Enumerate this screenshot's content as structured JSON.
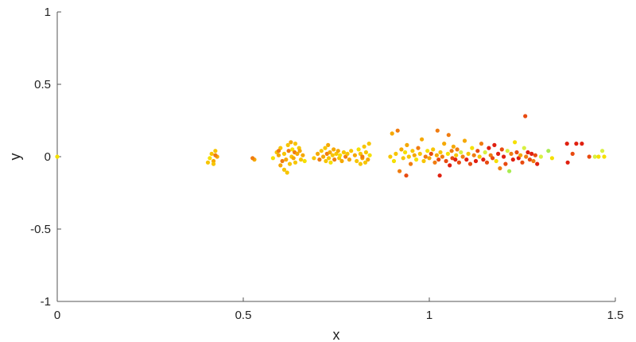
{
  "chart_data": {
    "type": "scatter",
    "title": "",
    "xlabel": "x",
    "ylabel": "y",
    "xlim": [
      0,
      1.5
    ],
    "ylim": [
      -1,
      1
    ],
    "x_ticks": [
      0,
      0.5,
      1,
      1.5
    ],
    "x_tick_labels": [
      "0",
      "0.5",
      "1",
      "1.5"
    ],
    "y_ticks": [
      -1,
      -0.5,
      0,
      0.5,
      1
    ],
    "y_tick_labels": [
      "-1",
      "-0.5",
      "0",
      "0.5",
      "1"
    ],
    "grid": false,
    "legend": "none",
    "colors": {
      "axis": "#555555",
      "red": "#e02010",
      "orange_red": "#e84a10",
      "orange": "#f07c10",
      "amber": "#f5a800",
      "gold": "#f7c500",
      "yellow": "#f5e000",
      "yellow_green": "#d8f040",
      "green": "#a8ec50"
    },
    "points": [
      {
        "x": 0.0,
        "y": 0.0,
        "c": "yellow"
      },
      {
        "x": 0.415,
        "y": 0.02,
        "c": "gold"
      },
      {
        "x": 0.42,
        "y": -0.03,
        "c": "amber"
      },
      {
        "x": 0.425,
        "y": 0.04,
        "c": "gold"
      },
      {
        "x": 0.41,
        "y": -0.01,
        "c": "yellow"
      },
      {
        "x": 0.43,
        "y": 0.0,
        "c": "amber"
      },
      {
        "x": 0.42,
        "y": -0.05,
        "c": "gold"
      },
      {
        "x": 0.405,
        "y": -0.04,
        "c": "gold"
      },
      {
        "x": 0.425,
        "y": 0.01,
        "c": "orange"
      },
      {
        "x": 0.53,
        "y": -0.02,
        "c": "amber"
      },
      {
        "x": 0.525,
        "y": -0.01,
        "c": "orange"
      },
      {
        "x": 0.58,
        "y": -0.01,
        "c": "yellow"
      },
      {
        "x": 0.59,
        "y": 0.03,
        "c": "gold"
      },
      {
        "x": 0.595,
        "y": 0.01,
        "c": "amber"
      },
      {
        "x": 0.6,
        "y": 0.06,
        "c": "gold"
      },
      {
        "x": 0.605,
        "y": -0.03,
        "c": "orange"
      },
      {
        "x": 0.61,
        "y": 0.02,
        "c": "gold"
      },
      {
        "x": 0.615,
        "y": -0.02,
        "c": "amber"
      },
      {
        "x": 0.62,
        "y": 0.08,
        "c": "gold"
      },
      {
        "x": 0.622,
        "y": 0.04,
        "c": "orange"
      },
      {
        "x": 0.625,
        "y": -0.05,
        "c": "gold"
      },
      {
        "x": 0.628,
        "y": 0.1,
        "c": "amber"
      },
      {
        "x": 0.63,
        "y": 0.0,
        "c": "gold"
      },
      {
        "x": 0.632,
        "y": 0.05,
        "c": "yellow"
      },
      {
        "x": 0.635,
        "y": -0.01,
        "c": "amber"
      },
      {
        "x": 0.638,
        "y": 0.03,
        "c": "orange"
      },
      {
        "x": 0.64,
        "y": -0.04,
        "c": "gold"
      },
      {
        "x": 0.645,
        "y": 0.02,
        "c": "amber"
      },
      {
        "x": 0.65,
        "y": 0.06,
        "c": "gold"
      },
      {
        "x": 0.655,
        "y": -0.02,
        "c": "gold"
      },
      {
        "x": 0.66,
        "y": 0.01,
        "c": "amber"
      },
      {
        "x": 0.665,
        "y": -0.03,
        "c": "yellow"
      },
      {
        "x": 0.61,
        "y": -0.09,
        "c": "gold"
      },
      {
        "x": 0.6,
        "y": -0.06,
        "c": "amber"
      },
      {
        "x": 0.618,
        "y": -0.11,
        "c": "gold"
      },
      {
        "x": 0.595,
        "y": 0.04,
        "c": "orange"
      },
      {
        "x": 0.64,
        "y": 0.09,
        "c": "gold"
      },
      {
        "x": 0.652,
        "y": 0.04,
        "c": "amber"
      },
      {
        "x": 0.69,
        "y": -0.01,
        "c": "gold"
      },
      {
        "x": 0.7,
        "y": 0.02,
        "c": "amber"
      },
      {
        "x": 0.705,
        "y": -0.02,
        "c": "orange"
      },
      {
        "x": 0.71,
        "y": 0.04,
        "c": "gold"
      },
      {
        "x": 0.715,
        "y": 0.0,
        "c": "amber"
      },
      {
        "x": 0.72,
        "y": 0.06,
        "c": "gold"
      },
      {
        "x": 0.722,
        "y": -0.03,
        "c": "gold"
      },
      {
        "x": 0.725,
        "y": 0.02,
        "c": "orange"
      },
      {
        "x": 0.728,
        "y": 0.08,
        "c": "amber"
      },
      {
        "x": 0.73,
        "y": -0.01,
        "c": "gold"
      },
      {
        "x": 0.733,
        "y": 0.03,
        "c": "amber"
      },
      {
        "x": 0.735,
        "y": -0.04,
        "c": "yellow"
      },
      {
        "x": 0.74,
        "y": 0.01,
        "c": "gold"
      },
      {
        "x": 0.743,
        "y": 0.05,
        "c": "amber"
      },
      {
        "x": 0.745,
        "y": -0.02,
        "c": "orange"
      },
      {
        "x": 0.75,
        "y": 0.02,
        "c": "gold"
      },
      {
        "x": 0.755,
        "y": 0.04,
        "c": "amber"
      },
      {
        "x": 0.758,
        "y": -0.01,
        "c": "gold"
      },
      {
        "x": 0.76,
        "y": 0.01,
        "c": "yellow"
      },
      {
        "x": 0.765,
        "y": -0.03,
        "c": "amber"
      },
      {
        "x": 0.77,
        "y": 0.03,
        "c": "gold"
      },
      {
        "x": 0.775,
        "y": 0.0,
        "c": "orange"
      },
      {
        "x": 0.78,
        "y": 0.02,
        "c": "gold"
      },
      {
        "x": 0.785,
        "y": -0.02,
        "c": "amber"
      },
      {
        "x": 0.79,
        "y": 0.04,
        "c": "gold"
      },
      {
        "x": 0.8,
        "y": 0.01,
        "c": "amber"
      },
      {
        "x": 0.805,
        "y": -0.03,
        "c": "gold"
      },
      {
        "x": 0.81,
        "y": 0.05,
        "c": "yellow"
      },
      {
        "x": 0.815,
        "y": 0.02,
        "c": "gold"
      },
      {
        "x": 0.82,
        "y": -0.01,
        "c": "amber"
      },
      {
        "x": 0.825,
        "y": 0.07,
        "c": "gold"
      },
      {
        "x": 0.83,
        "y": 0.03,
        "c": "gold"
      },
      {
        "x": 0.835,
        "y": -0.02,
        "c": "amber"
      },
      {
        "x": 0.838,
        "y": 0.09,
        "c": "gold"
      },
      {
        "x": 0.84,
        "y": 0.01,
        "c": "yellow"
      },
      {
        "x": 0.815,
        "y": -0.05,
        "c": "gold"
      },
      {
        "x": 0.82,
        "y": 0.0,
        "c": "orange"
      },
      {
        "x": 0.828,
        "y": -0.04,
        "c": "gold"
      },
      {
        "x": 0.895,
        "y": 0.0,
        "c": "gold"
      },
      {
        "x": 0.9,
        "y": 0.16,
        "c": "amber"
      },
      {
        "x": 0.905,
        "y": -0.03,
        "c": "yellow"
      },
      {
        "x": 0.91,
        "y": 0.02,
        "c": "gold"
      },
      {
        "x": 0.915,
        "y": 0.18,
        "c": "orange"
      },
      {
        "x": 0.92,
        "y": -0.1,
        "c": "orange"
      },
      {
        "x": 0.925,
        "y": 0.05,
        "c": "amber"
      },
      {
        "x": 0.93,
        "y": -0.01,
        "c": "gold"
      },
      {
        "x": 0.935,
        "y": 0.03,
        "c": "yellow"
      },
      {
        "x": 0.938,
        "y": -0.13,
        "c": "orange_red"
      },
      {
        "x": 0.94,
        "y": 0.08,
        "c": "amber"
      },
      {
        "x": 0.945,
        "y": 0.0,
        "c": "gold"
      },
      {
        "x": 0.95,
        "y": -0.05,
        "c": "orange"
      },
      {
        "x": 0.955,
        "y": 0.04,
        "c": "gold"
      },
      {
        "x": 0.96,
        "y": 0.01,
        "c": "amber"
      },
      {
        "x": 0.965,
        "y": -0.02,
        "c": "yellow"
      },
      {
        "x": 0.97,
        "y": 0.06,
        "c": "orange"
      },
      {
        "x": 0.975,
        "y": 0.02,
        "c": "gold"
      },
      {
        "x": 0.98,
        "y": 0.12,
        "c": "amber"
      },
      {
        "x": 0.985,
        "y": -0.03,
        "c": "gold"
      },
      {
        "x": 0.99,
        "y": 0.0,
        "c": "orange"
      },
      {
        "x": 0.995,
        "y": 0.04,
        "c": "yellow"
      },
      {
        "x": 1.0,
        "y": -0.01,
        "c": "amber"
      },
      {
        "x": 1.005,
        "y": 0.02,
        "c": "orange_red"
      },
      {
        "x": 1.01,
        "y": 0.05,
        "c": "gold"
      },
      {
        "x": 1.015,
        "y": -0.04,
        "c": "orange"
      },
      {
        "x": 1.02,
        "y": 0.01,
        "c": "amber"
      },
      {
        "x": 1.022,
        "y": 0.18,
        "c": "orange"
      },
      {
        "x": 1.025,
        "y": -0.02,
        "c": "orange_red"
      },
      {
        "x": 1.028,
        "y": -0.13,
        "c": "red"
      },
      {
        "x": 1.03,
        "y": 0.03,
        "c": "gold"
      },
      {
        "x": 1.035,
        "y": 0.0,
        "c": "orange"
      },
      {
        "x": 1.04,
        "y": 0.09,
        "c": "amber"
      },
      {
        "x": 1.045,
        "y": -0.03,
        "c": "orange_red"
      },
      {
        "x": 1.05,
        "y": 0.02,
        "c": "yellow"
      },
      {
        "x": 1.052,
        "y": 0.15,
        "c": "orange"
      },
      {
        "x": 1.055,
        "y": -0.06,
        "c": "red"
      },
      {
        "x": 1.06,
        "y": 0.04,
        "c": "orange"
      },
      {
        "x": 1.062,
        "y": -0.01,
        "c": "orange_red"
      },
      {
        "x": 1.065,
        "y": 0.07,
        "c": "amber"
      },
      {
        "x": 1.07,
        "y": -0.02,
        "c": "red"
      },
      {
        "x": 1.072,
        "y": 0.01,
        "c": "gold"
      },
      {
        "x": 1.075,
        "y": 0.05,
        "c": "orange"
      },
      {
        "x": 1.08,
        "y": -0.04,
        "c": "orange_red"
      },
      {
        "x": 1.085,
        "y": 0.03,
        "c": "yellow_green"
      },
      {
        "x": 1.09,
        "y": 0.0,
        "c": "orange"
      },
      {
        "x": 1.095,
        "y": 0.11,
        "c": "amber"
      },
      {
        "x": 1.1,
        "y": -0.02,
        "c": "red"
      },
      {
        "x": 1.105,
        "y": 0.02,
        "c": "gold"
      },
      {
        "x": 1.11,
        "y": -0.05,
        "c": "orange_red"
      },
      {
        "x": 1.115,
        "y": 0.06,
        "c": "yellow"
      },
      {
        "x": 1.12,
        "y": 0.01,
        "c": "orange"
      },
      {
        "x": 1.125,
        "y": -0.03,
        "c": "red"
      },
      {
        "x": 1.13,
        "y": 0.04,
        "c": "orange_red"
      },
      {
        "x": 1.135,
        "y": 0.0,
        "c": "gold"
      },
      {
        "x": 1.14,
        "y": 0.09,
        "c": "orange"
      },
      {
        "x": 1.145,
        "y": -0.02,
        "c": "red"
      },
      {
        "x": 1.15,
        "y": 0.03,
        "c": "yellow_green"
      },
      {
        "x": 1.155,
        "y": -0.04,
        "c": "orange_red"
      },
      {
        "x": 1.16,
        "y": 0.06,
        "c": "red"
      },
      {
        "x": 1.165,
        "y": 0.01,
        "c": "orange"
      },
      {
        "x": 1.17,
        "y": -0.01,
        "c": "orange_red"
      },
      {
        "x": 1.175,
        "y": 0.08,
        "c": "red"
      },
      {
        "x": 1.18,
        "y": -0.03,
        "c": "yellow"
      },
      {
        "x": 1.185,
        "y": 0.02,
        "c": "red"
      },
      {
        "x": 1.19,
        "y": -0.08,
        "c": "orange"
      },
      {
        "x": 1.195,
        "y": 0.05,
        "c": "orange_red"
      },
      {
        "x": 1.2,
        "y": 0.0,
        "c": "red"
      },
      {
        "x": 1.205,
        "y": -0.05,
        "c": "orange_red"
      },
      {
        "x": 1.21,
        "y": 0.04,
        "c": "yellow_green"
      },
      {
        "x": 1.215,
        "y": -0.1,
        "c": "green"
      },
      {
        "x": 1.22,
        "y": 0.02,
        "c": "orange"
      },
      {
        "x": 1.225,
        "y": -0.02,
        "c": "red"
      },
      {
        "x": 1.23,
        "y": 0.1,
        "c": "yellow"
      },
      {
        "x": 1.235,
        "y": 0.03,
        "c": "orange_red"
      },
      {
        "x": 1.24,
        "y": -0.01,
        "c": "red"
      },
      {
        "x": 1.245,
        "y": 0.01,
        "c": "amber"
      },
      {
        "x": 1.25,
        "y": -0.04,
        "c": "orange_red"
      },
      {
        "x": 1.255,
        "y": 0.06,
        "c": "yellow_green"
      },
      {
        "x": 1.258,
        "y": 0.28,
        "c": "orange_red"
      },
      {
        "x": 1.26,
        "y": 0.0,
        "c": "orange"
      },
      {
        "x": 1.265,
        "y": 0.03,
        "c": "red"
      },
      {
        "x": 1.27,
        "y": -0.02,
        "c": "orange_red"
      },
      {
        "x": 1.275,
        "y": 0.02,
        "c": "red"
      },
      {
        "x": 1.28,
        "y": -0.03,
        "c": "orange"
      },
      {
        "x": 1.285,
        "y": 0.01,
        "c": "orange_red"
      },
      {
        "x": 1.29,
        "y": -0.05,
        "c": "red"
      },
      {
        "x": 1.3,
        "y": 0.0,
        "c": "yellow_green"
      },
      {
        "x": 1.32,
        "y": 0.04,
        "c": "green"
      },
      {
        "x": 1.33,
        "y": -0.01,
        "c": "yellow"
      },
      {
        "x": 1.37,
        "y": 0.09,
        "c": "red"
      },
      {
        "x": 1.372,
        "y": -0.04,
        "c": "red"
      },
      {
        "x": 1.385,
        "y": 0.02,
        "c": "orange_red"
      },
      {
        "x": 1.395,
        "y": 0.09,
        "c": "red"
      },
      {
        "x": 1.41,
        "y": 0.09,
        "c": "red"
      },
      {
        "x": 1.43,
        "y": 0.0,
        "c": "orange_red"
      },
      {
        "x": 1.445,
        "y": 0.0,
        "c": "yellow_green"
      },
      {
        "x": 1.455,
        "y": 0.0,
        "c": "yellow"
      },
      {
        "x": 1.465,
        "y": 0.04,
        "c": "yellow_green"
      },
      {
        "x": 1.47,
        "y": 0.0,
        "c": "yellow"
      }
    ]
  }
}
